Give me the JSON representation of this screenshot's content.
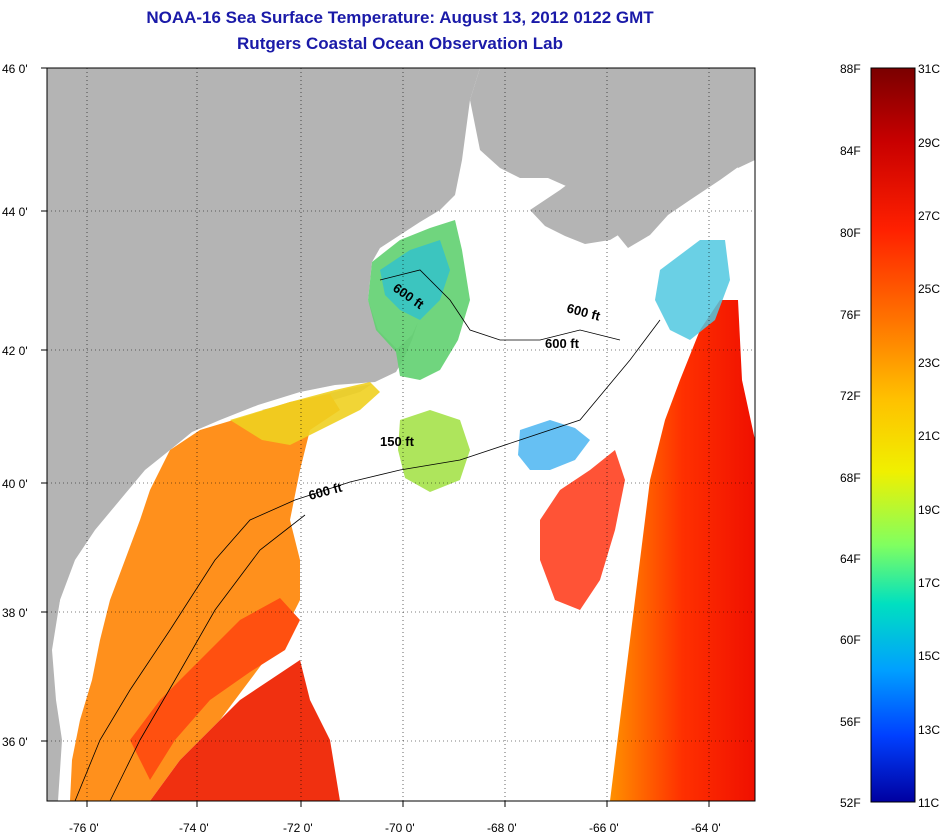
{
  "title": {
    "line1": "NOAA-16 Sea Surface Temperature:  August 13, 2012 0122 GMT",
    "line2": "Rutgers Coastal Ocean Observation Lab"
  },
  "map": {
    "lon_range": [
      -77.0,
      -62.7
    ],
    "lat_range": [
      35.0,
      46.0
    ],
    "lon_ticks": [
      {
        "value": -76,
        "label": "-76 0'"
      },
      {
        "value": -74,
        "label": "-74 0'"
      },
      {
        "value": -72,
        "label": "-72 0'"
      },
      {
        "value": -70,
        "label": "-70 0'"
      },
      {
        "value": -68,
        "label": "-68 0'"
      },
      {
        "value": -66,
        "label": "-66 0'"
      },
      {
        "value": -64,
        "label": "-64 0'"
      }
    ],
    "lat_ticks": [
      {
        "value": 46,
        "label": "46 0'"
      },
      {
        "value": 44,
        "label": "44 0'"
      },
      {
        "value": 42,
        "label": "42 0'"
      },
      {
        "value": 40,
        "label": "40 0'"
      },
      {
        "value": 38,
        "label": "38 0'"
      },
      {
        "value": 36,
        "label": "36 0'"
      }
    ],
    "contour_labels": [
      "600 ft",
      "600 ft",
      "600 ft",
      "150 ft",
      "600 ft"
    ],
    "colors": {
      "land": "#b4b4b4",
      "no_data": "#ffffff",
      "grid": "#000000"
    }
  },
  "colorbar": {
    "fahrenheit": [
      "88F",
      "84F",
      "80F",
      "76F",
      "72F",
      "68F",
      "64F",
      "60F",
      "56F",
      "52F"
    ],
    "celsius": [
      "31C",
      "29C",
      "27C",
      "25C",
      "23C",
      "21C",
      "19C",
      "17C",
      "15C",
      "13C",
      "11C"
    ],
    "stops": [
      "#7a0000",
      "#c80000",
      "#ff2000",
      "#ff7800",
      "#ffc000",
      "#f0f000",
      "#80ff60",
      "#00e0c0",
      "#00a0ff",
      "#0040ff",
      "#0000a0"
    ]
  }
}
